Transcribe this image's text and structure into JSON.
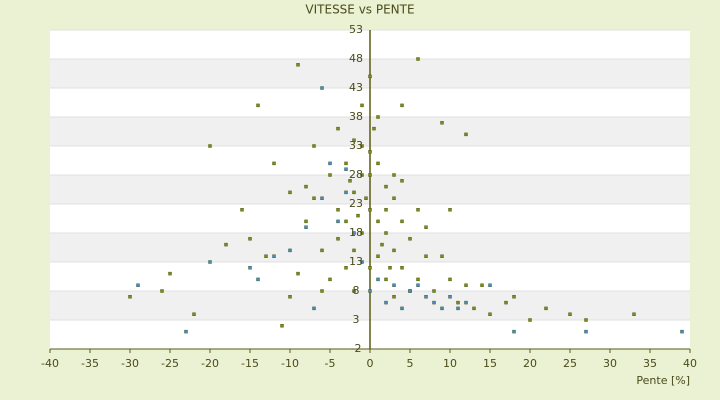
{
  "chart_data": {
    "type": "scatter",
    "title": "VITESSE vs PENTE",
    "x_label": "Pente [%]",
    "xlim": [
      -40,
      40
    ],
    "xticks": [
      -40,
      -35,
      -30,
      -25,
      -20,
      -15,
      -10,
      -5,
      0,
      5,
      10,
      15,
      20,
      25,
      30,
      35,
      40
    ],
    "ylim": [
      -2,
      53
    ],
    "yticks": [
      -2,
      3,
      8,
      13,
      18,
      23,
      28,
      33,
      38,
      43,
      48,
      53
    ],
    "grid": true,
    "series": [
      {
        "color": "#7d8c12",
        "x": [
          -14,
          -12,
          -10,
          -9,
          -8,
          -7,
          -6,
          -5,
          -5,
          -4,
          -4,
          -3,
          -3,
          -2,
          -2,
          -2,
          -1,
          -1,
          -1,
          0,
          0,
          0,
          0,
          1,
          1,
          1,
          2,
          2,
          2,
          3,
          3,
          3,
          4,
          4,
          5,
          5,
          6,
          6,
          7,
          8,
          9,
          10,
          11,
          12,
          13,
          15,
          17,
          20,
          22,
          25,
          -20,
          -25,
          -18,
          -15,
          -11,
          -6,
          -3,
          -1,
          1,
          3,
          6,
          9,
          -2,
          0,
          2,
          -4,
          -8,
          -13,
          4,
          7,
          0.5,
          -0.5,
          1.5,
          -1.5,
          2.5,
          -2.5,
          10,
          -7,
          -9,
          12,
          -16,
          27,
          33,
          18,
          14,
          -30,
          -26,
          -22,
          4,
          -10
        ],
        "values": [
          40,
          30,
          25,
          47,
          20,
          33,
          15,
          28,
          10,
          36,
          22,
          30,
          12,
          34,
          25,
          8,
          40,
          28,
          18,
          45,
          32,
          22,
          12,
          30,
          20,
          14,
          26,
          18,
          10,
          24,
          15,
          7,
          20,
          12,
          17,
          8,
          48,
          10,
          14,
          8,
          37,
          10,
          6,
          35,
          5,
          4,
          6,
          3,
          5,
          4,
          33,
          11,
          16,
          17,
          2,
          8,
          20,
          33,
          38,
          28,
          22,
          14,
          15,
          28,
          22,
          17,
          26,
          14,
          27,
          19,
          36,
          24,
          16,
          21,
          12,
          27,
          22,
          24,
          11,
          9,
          22,
          3,
          4,
          7,
          9,
          7,
          8,
          4,
          40,
          7
        ]
      },
      {
        "color": "#3a8fd8",
        "x": [
          -23,
          -29,
          -20,
          -15,
          -12,
          -10,
          -8,
          -6,
          -5,
          -4,
          -3,
          -2,
          -1,
          0,
          1,
          2,
          4,
          5,
          6,
          7,
          8,
          9,
          10,
          12,
          15,
          18,
          27,
          39,
          -6,
          -3,
          3,
          11,
          -14,
          -7
        ],
        "values": [
          1,
          9,
          13,
          12,
          14,
          15,
          19,
          24,
          30,
          20,
          29,
          18,
          13,
          8,
          10,
          6,
          5,
          8,
          9,
          7,
          6,
          5,
          7,
          6,
          9,
          1,
          1,
          1,
          43,
          25,
          9,
          5,
          10,
          5
        ]
      }
    ]
  }
}
